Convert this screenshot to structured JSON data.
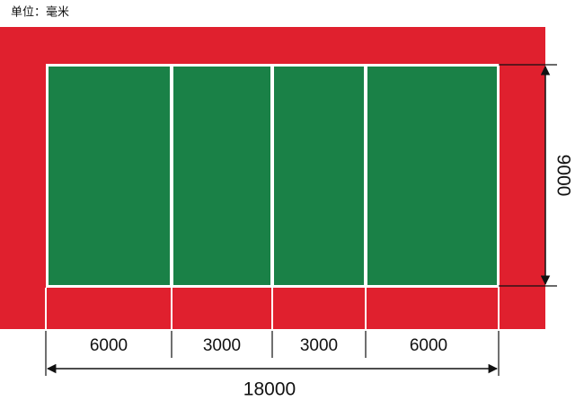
{
  "unit_label": "单位：毫米",
  "dimensions": {
    "segments": [
      "6000",
      "3000",
      "3000",
      "6000"
    ],
    "length": "18000",
    "width": "9000"
  }
}
